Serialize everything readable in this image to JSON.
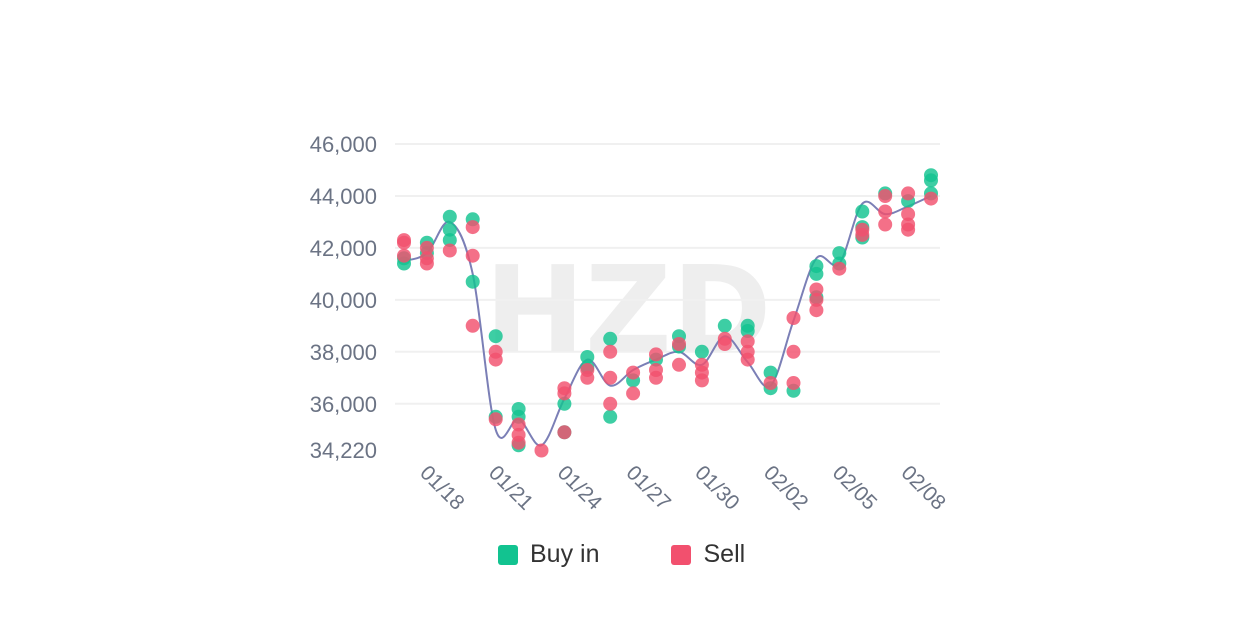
{
  "chart_data": {
    "type": "scatter",
    "watermark": "HZD",
    "y_ticks": [
      "46,000",
      "44,000",
      "42,000",
      "40,000",
      "38,000",
      "36,000",
      "34,220"
    ],
    "y_tick_values": [
      46000,
      44000,
      42000,
      40000,
      38000,
      36000,
      34220
    ],
    "x_ticks": [
      "01/18",
      "01/21",
      "01/24",
      "01/27",
      "01/30",
      "02/02",
      "02/05",
      "02/08"
    ],
    "x_tick_values": [
      "2023-01-18",
      "2023-01-21",
      "2023-01-24",
      "2023-01-27",
      "2023-01-30",
      "2023-02-02",
      "2023-02-05",
      "2023-02-08"
    ],
    "ylim": [
      34220,
      46000
    ],
    "xlim": [
      "2023-01-17",
      "2023-02-10"
    ],
    "grid": true,
    "legend_position": "bottom",
    "colors": {
      "buy": "#12c390",
      "sell": "#f2506e",
      "line": "#7b7fb6",
      "grid": "#f0f0f0",
      "axis_text": "#6b7384"
    },
    "legend": [
      {
        "label": "Buy in",
        "color": "#12c390"
      },
      {
        "label": "Sell",
        "color": "#f2506e"
      }
    ],
    "line": {
      "x": [
        "2023-01-17",
        "2023-01-18",
        "2023-01-19",
        "2023-01-20",
        "2023-01-21",
        "2023-01-22",
        "2023-01-23",
        "2023-01-24",
        "2023-01-25",
        "2023-01-26",
        "2023-01-27",
        "2023-01-28",
        "2023-01-29",
        "2023-01-30",
        "2023-01-31",
        "2023-02-01",
        "2023-02-02",
        "2023-02-03",
        "2023-02-04",
        "2023-02-05",
        "2023-02-06",
        "2023-02-07",
        "2023-02-08",
        "2023-02-09"
      ],
      "y": [
        41500,
        41800,
        43000,
        41000,
        35000,
        35400,
        34400,
        36200,
        37700,
        36700,
        37300,
        37700,
        38000,
        37500,
        38600,
        37600,
        36700,
        39200,
        41600,
        41400,
        43700,
        43300,
        43600,
        44000
      ]
    },
    "series": [
      {
        "name": "Buy in",
        "color": "#12c390",
        "points": [
          {
            "x": "2023-01-17",
            "y": 41400
          },
          {
            "x": "2023-01-17",
            "y": 41600
          },
          {
            "x": "2023-01-18",
            "y": 42200
          },
          {
            "x": "2023-01-18",
            "y": 41800
          },
          {
            "x": "2023-01-19",
            "y": 43200
          },
          {
            "x": "2023-01-19",
            "y": 42700
          },
          {
            "x": "2023-01-19",
            "y": 42300
          },
          {
            "x": "2023-01-20",
            "y": 43100
          },
          {
            "x": "2023-01-20",
            "y": 40700
          },
          {
            "x": "2023-01-21",
            "y": 38600
          },
          {
            "x": "2023-01-21",
            "y": 35500
          },
          {
            "x": "2023-01-22",
            "y": 35800
          },
          {
            "x": "2023-01-22",
            "y": 35500
          },
          {
            "x": "2023-01-22",
            "y": 34400
          },
          {
            "x": "2023-01-24",
            "y": 36000
          },
          {
            "x": "2023-01-24",
            "y": 34900
          },
          {
            "x": "2023-01-25",
            "y": 37800
          },
          {
            "x": "2023-01-25",
            "y": 37400
          },
          {
            "x": "2023-01-26",
            "y": 38500
          },
          {
            "x": "2023-01-26",
            "y": 35500
          },
          {
            "x": "2023-01-27",
            "y": 36900
          },
          {
            "x": "2023-01-28",
            "y": 37700
          },
          {
            "x": "2023-01-29",
            "y": 38600
          },
          {
            "x": "2023-01-29",
            "y": 38200
          },
          {
            "x": "2023-01-30",
            "y": 38000
          },
          {
            "x": "2023-01-31",
            "y": 39000
          },
          {
            "x": "2023-02-01",
            "y": 39000
          },
          {
            "x": "2023-02-01",
            "y": 38800
          },
          {
            "x": "2023-02-02",
            "y": 37200
          },
          {
            "x": "2023-02-02",
            "y": 36600
          },
          {
            "x": "2023-02-03",
            "y": 36500
          },
          {
            "x": "2023-02-04",
            "y": 41300
          },
          {
            "x": "2023-02-04",
            "y": 41000
          },
          {
            "x": "2023-02-04",
            "y": 40100
          },
          {
            "x": "2023-02-05",
            "y": 41800
          },
          {
            "x": "2023-02-05",
            "y": 41400
          },
          {
            "x": "2023-02-06",
            "y": 43400
          },
          {
            "x": "2023-02-06",
            "y": 42800
          },
          {
            "x": "2023-02-06",
            "y": 42400
          },
          {
            "x": "2023-02-07",
            "y": 44100
          },
          {
            "x": "2023-02-08",
            "y": 43800
          },
          {
            "x": "2023-02-09",
            "y": 44800
          },
          {
            "x": "2023-02-09",
            "y": 44600
          },
          {
            "x": "2023-02-09",
            "y": 44100
          }
        ]
      },
      {
        "name": "Sell",
        "color": "#f2506e",
        "points": [
          {
            "x": "2023-01-17",
            "y": 42300
          },
          {
            "x": "2023-01-17",
            "y": 42200
          },
          {
            "x": "2023-01-17",
            "y": 41700
          },
          {
            "x": "2023-01-18",
            "y": 42000
          },
          {
            "x": "2023-01-18",
            "y": 41600
          },
          {
            "x": "2023-01-18",
            "y": 41400
          },
          {
            "x": "2023-01-19",
            "y": 41900
          },
          {
            "x": "2023-01-20",
            "y": 42800
          },
          {
            "x": "2023-01-20",
            "y": 41700
          },
          {
            "x": "2023-01-20",
            "y": 39000
          },
          {
            "x": "2023-01-21",
            "y": 38000
          },
          {
            "x": "2023-01-21",
            "y": 37700
          },
          {
            "x": "2023-01-21",
            "y": 35400
          },
          {
            "x": "2023-01-22",
            "y": 35200
          },
          {
            "x": "2023-01-22",
            "y": 34800
          },
          {
            "x": "2023-01-22",
            "y": 34500
          },
          {
            "x": "2023-01-23",
            "y": 34200
          },
          {
            "x": "2023-01-24",
            "y": 36600
          },
          {
            "x": "2023-01-24",
            "y": 36400
          },
          {
            "x": "2023-01-24",
            "y": 34900
          },
          {
            "x": "2023-01-25",
            "y": 37300
          },
          {
            "x": "2023-01-25",
            "y": 37000
          },
          {
            "x": "2023-01-26",
            "y": 38000
          },
          {
            "x": "2023-01-26",
            "y": 37000
          },
          {
            "x": "2023-01-26",
            "y": 36000
          },
          {
            "x": "2023-01-27",
            "y": 37200
          },
          {
            "x": "2023-01-27",
            "y": 36400
          },
          {
            "x": "2023-01-28",
            "y": 37900
          },
          {
            "x": "2023-01-28",
            "y": 37300
          },
          {
            "x": "2023-01-28",
            "y": 37000
          },
          {
            "x": "2023-01-29",
            "y": 38300
          },
          {
            "x": "2023-01-29",
            "y": 37500
          },
          {
            "x": "2023-01-30",
            "y": 37500
          },
          {
            "x": "2023-01-30",
            "y": 37200
          },
          {
            "x": "2023-01-30",
            "y": 36900
          },
          {
            "x": "2023-01-31",
            "y": 38500
          },
          {
            "x": "2023-01-31",
            "y": 38300
          },
          {
            "x": "2023-02-01",
            "y": 38400
          },
          {
            "x": "2023-02-01",
            "y": 38000
          },
          {
            "x": "2023-02-01",
            "y": 37700
          },
          {
            "x": "2023-02-02",
            "y": 36800
          },
          {
            "x": "2023-02-03",
            "y": 39300
          },
          {
            "x": "2023-02-03",
            "y": 38000
          },
          {
            "x": "2023-02-03",
            "y": 36800
          },
          {
            "x": "2023-02-04",
            "y": 40400
          },
          {
            "x": "2023-02-04",
            "y": 40000
          },
          {
            "x": "2023-02-04",
            "y": 39600
          },
          {
            "x": "2023-02-05",
            "y": 41200
          },
          {
            "x": "2023-02-06",
            "y": 42700
          },
          {
            "x": "2023-02-06",
            "y": 42500
          },
          {
            "x": "2023-02-07",
            "y": 44000
          },
          {
            "x": "2023-02-07",
            "y": 43400
          },
          {
            "x": "2023-02-07",
            "y": 42900
          },
          {
            "x": "2023-02-08",
            "y": 44100
          },
          {
            "x": "2023-02-08",
            "y": 43300
          },
          {
            "x": "2023-02-08",
            "y": 42900
          },
          {
            "x": "2023-02-08",
            "y": 42700
          },
          {
            "x": "2023-02-09",
            "y": 43900
          }
        ]
      }
    ]
  }
}
